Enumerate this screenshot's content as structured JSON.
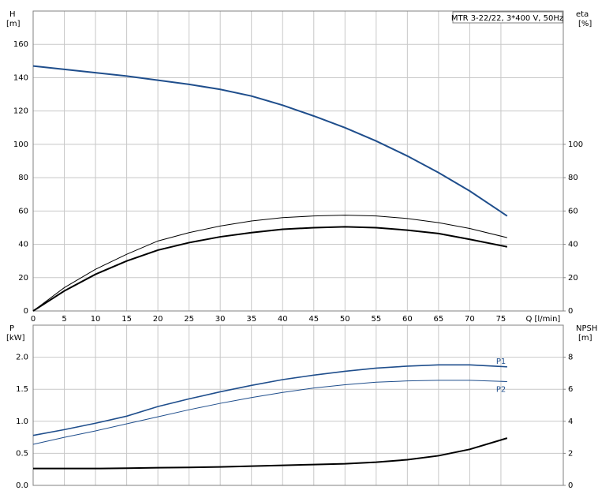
{
  "chart_data": [
    {
      "type": "line",
      "title": "MTR 3-22/22, 3*400 V, 50Hz",
      "ylabel": "H",
      "ylabel_unit": "[m]",
      "y2label": "eta",
      "y2label_unit": "[%]",
      "xlabel": "Q [l/min]",
      "x": [
        0,
        5,
        10,
        15,
        20,
        25,
        30,
        35,
        40,
        45,
        50,
        55,
        60,
        65,
        70,
        76
      ],
      "xlim": [
        0,
        85
      ],
      "xticks": [
        0,
        5,
        10,
        15,
        20,
        25,
        30,
        35,
        40,
        45,
        50,
        55,
        60,
        65,
        70,
        75
      ],
      "ylim": [
        0,
        180
      ],
      "yticks": [
        0,
        20,
        40,
        60,
        80,
        100,
        120,
        140,
        160
      ],
      "y2lim": [
        0,
        180
      ],
      "y2ticks": [
        0,
        20,
        40,
        60,
        80,
        100
      ],
      "grid": true,
      "series": [
        {
          "color": "#1f4e8c",
          "width": 2,
          "values": [
            147,
            145,
            143,
            141,
            138.5,
            136,
            133,
            129,
            123.5,
            117,
            110,
            102,
            93,
            83,
            72,
            57
          ]
        },
        {
          "color": "#000000",
          "width": 1,
          "axis": "y2",
          "values": [
            0,
            14,
            25,
            34,
            42,
            47,
            51,
            54,
            56,
            57,
            57.5,
            57,
            55.5,
            53,
            49.5,
            44
          ]
        },
        {
          "color": "#000000",
          "width": 2,
          "axis": "y2",
          "values": [
            0,
            12,
            22,
            30,
            36.5,
            41,
            44.5,
            47,
            49,
            50,
            50.5,
            50,
            48.5,
            46.5,
            43,
            38.5
          ]
        }
      ]
    },
    {
      "type": "line",
      "ylabel": "P",
      "ylabel_unit": "[kW]",
      "y2label": "NPSH",
      "y2label_unit": "[m]",
      "x": [
        0,
        5,
        10,
        15,
        20,
        25,
        30,
        35,
        40,
        45,
        50,
        55,
        60,
        65,
        70,
        76
      ],
      "xlim": [
        0,
        85
      ],
      "ylim": [
        0,
        2.5
      ],
      "yticks": [
        {
          "value": 0,
          "label": "0.0"
        },
        0.5,
        {
          "value": 1,
          "label": "1.0"
        },
        1.5,
        {
          "value": 2,
          "label": "2.0"
        }
      ],
      "y2lim": [
        0,
        10
      ],
      "y2ticks": [
        0,
        2,
        4,
        6,
        8
      ],
      "grid": true,
      "series": [
        {
          "name": "P1",
          "color": "#1f4e8c",
          "width": 1.6,
          "values": [
            0.78,
            0.87,
            0.97,
            1.08,
            1.23,
            1.35,
            1.46,
            1.56,
            1.65,
            1.72,
            1.78,
            1.83,
            1.86,
            1.88,
            1.88,
            1.85
          ]
        },
        {
          "name": "P2",
          "color": "#1f4e8c",
          "width": 1,
          "values": [
            0.64,
            0.75,
            0.85,
            0.96,
            1.07,
            1.18,
            1.28,
            1.37,
            1.45,
            1.52,
            1.57,
            1.61,
            1.63,
            1.64,
            1.64,
            1.62
          ]
        },
        {
          "color": "#000000",
          "width": 2,
          "axis": "y2",
          "values": [
            1.05,
            1.05,
            1.05,
            1.07,
            1.1,
            1.12,
            1.15,
            1.2,
            1.25,
            1.3,
            1.35,
            1.45,
            1.6,
            1.85,
            2.25,
            2.95
          ]
        }
      ]
    }
  ]
}
